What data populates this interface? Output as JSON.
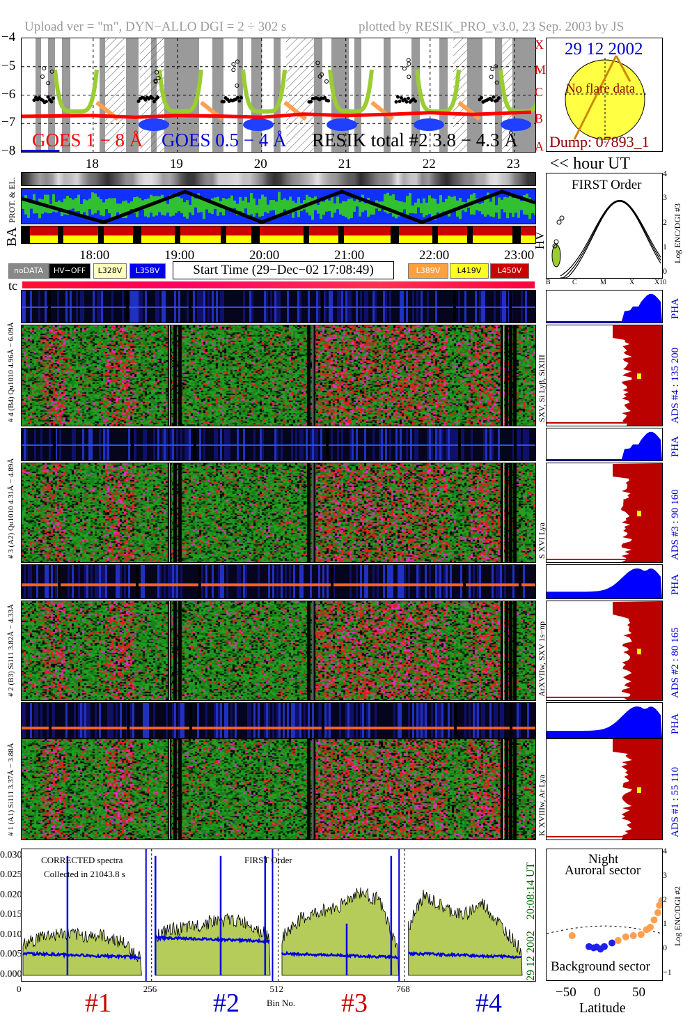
{
  "header": {
    "left": "Upload ver = \"m\", DYN−ALLO DGI =   2 ÷ 302 s",
    "right": "plotted by RESIK_PRO_v3.0, 23 Sep. 2003 by JS"
  },
  "colors": {
    "goes_long": "#ff0000",
    "goes_short": "#0000dd",
    "resik": "#000000",
    "phase_green": "#9acd32",
    "phase_orange": "#ffa050",
    "ads_red": "#bb0000",
    "pha_blue": "#0000ff",
    "spec_fill": "#b5cc5b"
  },
  "top_chart": {
    "y_ticks": [
      "−4",
      "−5",
      "−6",
      "−7",
      "−8"
    ],
    "x_ticks": [
      "18",
      "19",
      "20",
      "21",
      "22",
      "23"
    ],
    "hour_ut_label": "<< hour UT",
    "goes_long_label": "GOES 1 − 8 Å",
    "goes_short_label": "GOES 0.5 − 4 Å",
    "resik_label": "RESIK total #2  3.8 − 4.3 Å",
    "flare_classes": [
      "X",
      "M",
      "C",
      "B",
      "A"
    ]
  },
  "sun_panel": {
    "date": "29 12 2002",
    "note": "No flare data",
    "dump": "Dump: 07893_1"
  },
  "status": {
    "prot_label": "PROT. & EL.",
    "ba_label": "BA",
    "hv_label": "HV",
    "time_ticks": [
      "18:00",
      "19:00",
      "20:00",
      "21:00",
      "22:00",
      "23:00"
    ]
  },
  "legend": {
    "nodata": "noDATA",
    "hv_off": "HV−OFF",
    "v328": "L328V",
    "v358": "L358V",
    "start_time": "Start Time (29−Dec−02 17:08:49)",
    "v389": "L389V",
    "v419": "L419V",
    "v450": "L450V"
  },
  "tc_label": "tc",
  "first_order_panel": {
    "title": "FIRST Order",
    "x_ticks": [
      "B",
      "C",
      "M",
      "X",
      "X10"
    ],
    "y_ticks": [
      "4",
      "3",
      "2",
      "1",
      "0"
    ],
    "ylabel": "Log ENC/DGI #3"
  },
  "channels": [
    {
      "pha_label": "# 4 (B4) Qu1010 4.96Å − 6.09Å",
      "lines": "SXV, Si Lyβ, SiXIII",
      "ads": "ADS #4 :   135 200",
      "pha": "PHA"
    },
    {
      "pha_label": "# 3 (A2) Qu1010 4.31Å − 4.89Å",
      "lines": "S XVI Lya",
      "ads": "ADS #3 :    90 160",
      "pha": "PHA"
    },
    {
      "pha_label": "# 2 (B3) Si111 3.82Å − 4.33Å",
      "lines": "ArXVIIw, SXV 1s−np",
      "ads": "ADS #2 :    80 165",
      "pha": "PHA"
    },
    {
      "pha_label": "# 1 (A1) Si111 3.37Å − 3.88Å",
      "lines": "K XVIIIw, Ar Lya",
      "ads": "ADS #1 :    55 110",
      "pha": "PHA"
    }
  ],
  "spectrum_panel": {
    "note1": "CORRECTED spectra",
    "note2": "Collected in 21043.8 s",
    "order": "FIRST Order",
    "y_ticks": [
      "0.030",
      "0.025",
      "0.020",
      "0.015",
      "0.010",
      "0.005",
      "0.000"
    ],
    "x_ticks": [
      "0",
      "256",
      "512",
      "768"
    ],
    "xlabel": "Bin No.",
    "time_stamp": "20:08:14 UT",
    "date_stamp": "29 12 2002",
    "channel_labels": [
      "#1",
      "#2",
      "#3",
      "#4"
    ]
  },
  "latitude_panel": {
    "title1": "Night",
    "title2": "Auroral sector",
    "bottom": "Background sector",
    "x_ticks": [
      "−50",
      "0",
      "50"
    ],
    "xlabel": "Latitude",
    "y_ticks": [
      "4",
      "3",
      "2",
      "1",
      "0",
      "−1"
    ],
    "ylabel": "Log ENC/DGI #2"
  },
  "chart_data": [
    {
      "type": "line",
      "title": "",
      "xlabel": "",
      "ylabel": "",
      "x_ticks": [
        18,
        19,
        20,
        21,
        22,
        23
      ],
      "ylim": [
        -8,
        -4
      ],
      "series": [
        {
          "name": "GOES 1 − 8 Å",
          "x": [
            17.15,
            18,
            18.5,
            19,
            19.5,
            20,
            20.5,
            21,
            21.5,
            22,
            22.5,
            23.2
          ],
          "values": [
            -6.75,
            -6.72,
            -6.78,
            -6.72,
            -6.74,
            -6.78,
            -6.67,
            -6.72,
            -6.68,
            -6.62,
            -6.68,
            -6.6
          ]
        },
        {
          "name": "GOES 0.5 − 4 Å",
          "x": [
            17.15,
            17.6
          ],
          "values": [
            -8.0,
            -8.0
          ]
        }
      ]
    },
    {
      "type": "bar",
      "title": "",
      "xlabel": "Bin No.",
      "ylabel": "",
      "x_ticks": [
        0,
        256,
        512,
        768
      ],
      "ylim": [
        0,
        0.031
      ],
      "series": [
        {
          "name": "#1",
          "x": [
            0,
            40,
            80,
            120,
            160,
            200,
            240
          ],
          "values": [
            0.0075,
            0.01,
            0.0105,
            0.01,
            0.01,
            0.0085,
            0.004
          ]
        },
        {
          "name": "#2",
          "x": [
            268,
            300,
            340,
            380,
            420,
            460,
            500
          ],
          "values": [
            0.01,
            0.0115,
            0.012,
            0.0135,
            0.014,
            0.013,
            0.0095
          ]
        },
        {
          "name": "#3",
          "x": [
            524,
            560,
            600,
            640,
            680,
            720,
            760
          ],
          "values": [
            0.0095,
            0.014,
            0.016,
            0.0175,
            0.021,
            0.019,
            0.006
          ]
        },
        {
          "name": "#4",
          "x": [
            780,
            810,
            850,
            890,
            930,
            970,
            1010
          ],
          "values": [
            0.012,
            0.02,
            0.017,
            0.015,
            0.018,
            0.012,
            0.006
          ]
        }
      ]
    },
    {
      "type": "scatter",
      "title": "",
      "xlabel": "Latitude",
      "ylabel": "Log ENC/DGI #2",
      "x_ticks": [
        -50,
        0,
        50
      ],
      "ylim": [
        -1,
        4
      ],
      "series": [
        {
          "name": "",
          "x": [
            -42,
            -20,
            -14,
            -10,
            -5,
            0,
            10,
            18,
            28,
            38,
            48,
            55,
            60,
            65,
            70,
            72,
            75
          ],
          "values": [
            0.55,
            0.1,
            0.05,
            0.08,
            0.0,
            0.1,
            0.25,
            0.35,
            0.5,
            0.55,
            0.6,
            0.8,
            0.9,
            1.2,
            1.5,
            1.8,
            2.0
          ]
        }
      ]
    }
  ]
}
